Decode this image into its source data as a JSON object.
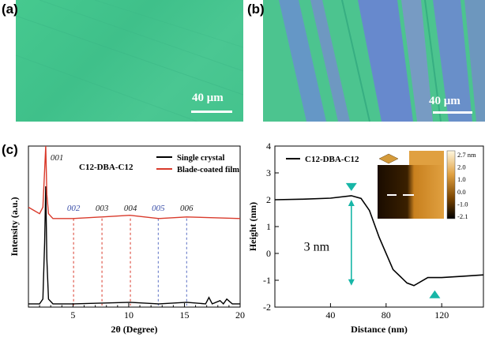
{
  "panels": {
    "a": {
      "label": "(a)",
      "scalebar": "40 μm"
    },
    "b": {
      "label": "(b)",
      "scalebar": "40 μm"
    },
    "c": {
      "label": "(c)"
    }
  },
  "chart_data": [
    {
      "type": "line",
      "title": "C12-DBA-C12",
      "xlabel": "2θ (Degree)",
      "ylabel": "Intensity (a.u.)",
      "xlim": [
        1,
        20
      ],
      "xticks": [
        5,
        10,
        15,
        20
      ],
      "legend": [
        "Single crystal",
        "Blade-coated film"
      ],
      "legend_position": "top-right",
      "series": [
        {
          "name": "Single crystal",
          "color": "#000000",
          "x": [
            1.0,
            2.0,
            2.3,
            2.45,
            2.55,
            2.65,
            2.8,
            3.2,
            5.0,
            7.6,
            10.1,
            12.7,
            15.2,
            16.9,
            17.2,
            17.5,
            18.2,
            18.5,
            18.8,
            19.3,
            20.0
          ],
          "y": [
            0.02,
            0.02,
            0.05,
            0.4,
            0.75,
            0.3,
            0.05,
            0.02,
            0.02,
            0.025,
            0.03,
            0.02,
            0.03,
            0.02,
            0.06,
            0.02,
            0.04,
            0.02,
            0.05,
            0.02,
            0.02
          ]
        },
        {
          "name": "Blade-coated film",
          "color": "#d93a2b",
          "x": [
            1.0,
            1.5,
            2.0,
            2.3,
            2.45,
            2.55,
            2.65,
            2.8,
            3.2,
            4.0,
            5.0,
            7.6,
            10.1,
            12.7,
            15.2,
            20.0
          ],
          "y": [
            0.62,
            0.6,
            0.58,
            0.62,
            0.85,
            1.0,
            0.7,
            0.58,
            0.55,
            0.55,
            0.55,
            0.56,
            0.57,
            0.55,
            0.56,
            0.55
          ]
        }
      ],
      "annotations": [
        {
          "text": "001",
          "x": 2.55
        },
        {
          "text": "002",
          "x": 5.05
        },
        {
          "text": "003",
          "x": 7.6
        },
        {
          "text": "004",
          "x": 10.15
        },
        {
          "text": "005",
          "x": 12.65
        },
        {
          "text": "006",
          "x": 15.2
        }
      ]
    },
    {
      "type": "line",
      "title": "C12-DBA-C12",
      "xlabel": "Distance (nm)",
      "ylabel": "Height (nm)",
      "xlim": [
        0,
        150
      ],
      "ylim": [
        -2,
        4
      ],
      "xticks": [
        40,
        80,
        120
      ],
      "yticks": [
        -2,
        -1,
        0,
        1,
        2,
        3,
        4
      ],
      "series": [
        {
          "name": "C12-DBA-C12",
          "color": "#000000",
          "x": [
            0,
            20,
            40,
            55,
            62,
            68,
            75,
            85,
            95,
            100,
            110,
            120,
            135,
            150
          ],
          "y": [
            2.0,
            2.02,
            2.06,
            2.15,
            2.05,
            1.6,
            0.6,
            -0.6,
            -1.1,
            -1.2,
            -0.9,
            -0.9,
            -0.85,
            -0.8
          ]
        }
      ],
      "annotation_text": "3 nm",
      "markers": [
        {
          "x": 55,
          "y": 2.15
        },
        {
          "x": 115,
          "y": -1.2
        }
      ],
      "colorbar_ticks": [
        "2.7 nm",
        "2.0",
        "1.0",
        "0.0",
        "-1.0",
        "-2.1"
      ]
    }
  ]
}
